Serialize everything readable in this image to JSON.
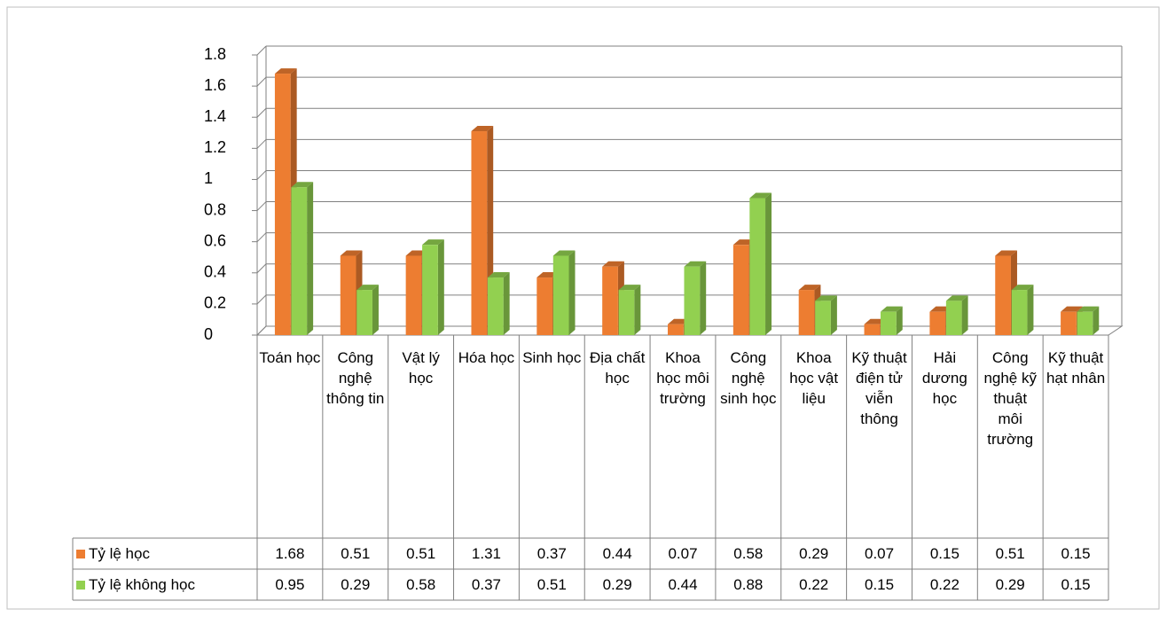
{
  "chart_data": {
    "type": "bar3d",
    "categories": [
      "Toán học",
      "Công nghệ thông tin",
      "Vật lý học",
      "Hóa học",
      "Sinh học",
      "Địa chất học",
      "Khoa học môi trường",
      "Công nghệ sinh học",
      "Khoa học vật liệu",
      "Kỹ thuật điện tử viễn thông",
      "Hải dương học",
      "Công nghệ kỹ thuật môi trường",
      "Kỹ thuật hạt nhân"
    ],
    "series": [
      {
        "name": "Tỷ lệ học",
        "color": "#ED7D31",
        "values": [
          1.68,
          0.51,
          0.51,
          1.31,
          0.37,
          0.44,
          0.07,
          0.58,
          0.29,
          0.07,
          0.15,
          0.51,
          0.15
        ]
      },
      {
        "name": "Tỷ lệ không học",
        "color": "#92D050",
        "values": [
          0.95,
          0.29,
          0.58,
          0.37,
          0.51,
          0.29,
          0.44,
          0.88,
          0.22,
          0.15,
          0.22,
          0.29,
          0.15
        ]
      }
    ],
    "ylim": [
      0,
      1.8
    ],
    "yticks": [
      0,
      0.2,
      0.4,
      0.6,
      0.8,
      1,
      1.2,
      1.4,
      1.6,
      1.8
    ],
    "grid": true,
    "data_table": true
  }
}
